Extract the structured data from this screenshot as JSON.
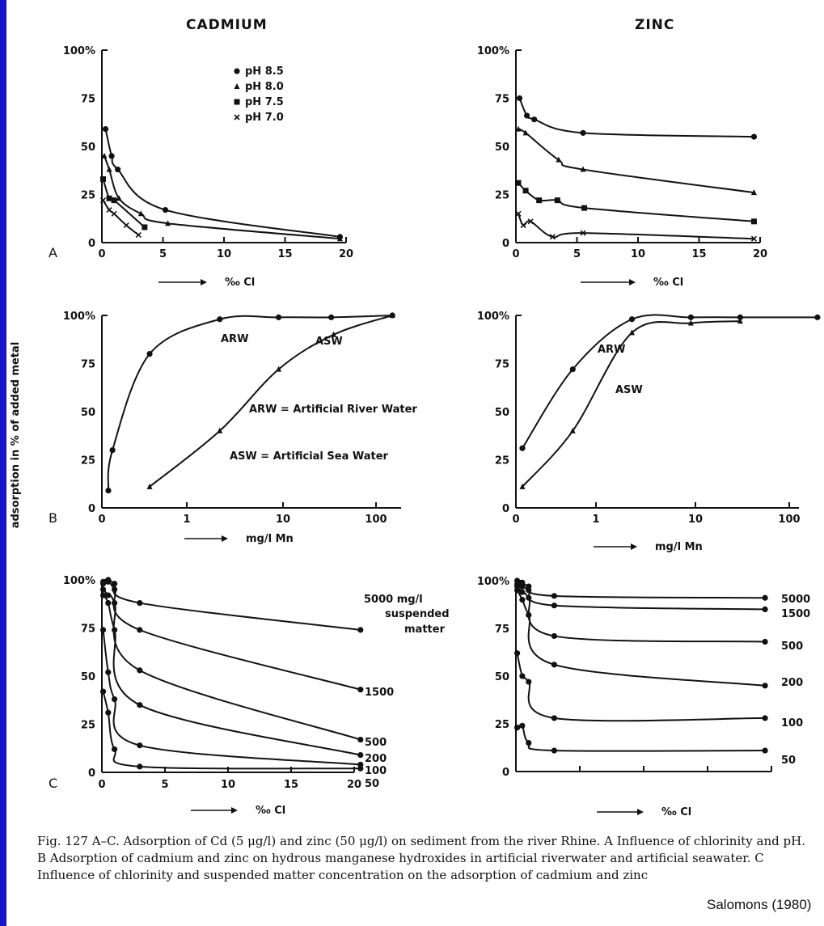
{
  "figure": {
    "col_titles": [
      "CADMIUM",
      "ZINC"
    ],
    "y_label": "adsorption in % of added metal",
    "caption": "Fig. 127 A–C. Adsorption of Cd (5 μg/l) and zinc (50 μg/l) on sediment from the river Rhine. A Influence of chlorinity and pH. B Adsorption of cadmium and zinc on hydrous manganese hydroxides in artificial riverwater and artificial seawater. C Influence of chlorinity and suspended matter concentration on the adsorption of cadmium and zinc",
    "credit": "Salomons (1980)"
  },
  "chart_data": [
    {
      "id": "A-cadmium",
      "panel_label": "A",
      "type": "line",
      "title": "CADMIUM",
      "xlabel": "‰ Cl",
      "ylabel": "adsorption in % of added metal",
      "xlim": [
        0,
        20
      ],
      "ylim": [
        0,
        100
      ],
      "x_ticks": [
        "0",
        "5",
        "10",
        "15",
        "20"
      ],
      "y_ticks": [
        "0",
        "25",
        "50",
        "75",
        "100%"
      ],
      "legend": {
        "placement": "top-center",
        "entries": [
          "pH 8.5",
          "pH 8.0",
          "pH 7.5",
          "pH 7.0"
        ]
      },
      "series": [
        {
          "name": "pH 8.5",
          "marker": "circle",
          "x": [
            0.3,
            0.8,
            1.3,
            5.2,
            19.5
          ],
          "y": [
            59,
            45,
            38,
            17,
            3
          ]
        },
        {
          "name": "pH 8.0",
          "marker": "triangle",
          "x": [
            0.2,
            0.6,
            1.4,
            3.2,
            5.4,
            19.5
          ],
          "y": [
            45,
            38,
            23,
            15,
            10,
            2
          ]
        },
        {
          "name": "pH 7.5",
          "marker": "square",
          "x": [
            0.1,
            0.6,
            1.0,
            3.5
          ],
          "y": [
            33,
            23,
            22,
            8
          ]
        },
        {
          "name": "pH 7.0",
          "marker": "x",
          "x": [
            0.1,
            0.6,
            1.0,
            2.0,
            3.0
          ],
          "y": [
            22,
            17,
            15,
            9,
            4
          ]
        }
      ]
    },
    {
      "id": "A-zinc",
      "panel_label": "",
      "type": "line",
      "title": "ZINC",
      "xlabel": "‰ Cl",
      "ylabel": "",
      "xlim": [
        0,
        20
      ],
      "ylim": [
        0,
        100
      ],
      "x_ticks": [
        "0",
        "5",
        "10",
        "15",
        "20"
      ],
      "y_ticks": [
        "0",
        "25",
        "50",
        "75",
        "100%"
      ],
      "series": [
        {
          "name": "pH 8.5",
          "marker": "circle",
          "x": [
            0.3,
            0.9,
            1.5,
            5.5,
            19.5
          ],
          "y": [
            75,
            66,
            64,
            57,
            55
          ]
        },
        {
          "name": "pH 8.0",
          "marker": "triangle",
          "x": [
            0.2,
            0.8,
            3.5,
            5.5,
            19.5
          ],
          "y": [
            59,
            57,
            43,
            38,
            26
          ]
        },
        {
          "name": "pH 7.5",
          "marker": "square",
          "x": [
            0.2,
            0.8,
            1.9,
            3.4,
            5.6,
            19.5
          ],
          "y": [
            31,
            27,
            22,
            22,
            18,
            11
          ]
        },
        {
          "name": "pH 7.0",
          "marker": "x",
          "x": [
            0.2,
            0.6,
            1.2,
            3.0,
            5.5,
            19.5
          ],
          "y": [
            15,
            9,
            11,
            3,
            5,
            2
          ]
        }
      ]
    },
    {
      "id": "B-cadmium",
      "panel_label": "B",
      "type": "line",
      "xlabel": "mg/l Mn",
      "ylabel": "adsorption in % of added metal",
      "x_scale": "log",
      "xlim": [
        0,
        100
      ],
      "ylim": [
        0,
        100
      ],
      "x_ticks": [
        "0",
        "1",
        "10",
        "100"
      ],
      "y_ticks": [
        "0",
        "25",
        "50",
        "75",
        "100%"
      ],
      "annotations": [
        "ARW",
        "ASW",
        "ARW = Artificial River Water",
        "ASW = Artificial Sea Water"
      ],
      "series": [
        {
          "name": "ARW",
          "marker": "circle",
          "x": [
            0.05,
            0.1,
            0.55,
            2.2,
            9,
            33,
            150
          ],
          "y": [
            9,
            30,
            80,
            98,
            99,
            99,
            100
          ]
        },
        {
          "name": "ASW",
          "marker": "triangle",
          "x": [
            0.55,
            2.2,
            9,
            35,
            150
          ],
          "y": [
            11,
            40,
            72,
            90,
            100
          ]
        }
      ]
    },
    {
      "id": "B-zinc",
      "panel_label": "",
      "type": "line",
      "xlabel": "mg/l Mn",
      "ylabel": "",
      "x_scale": "log",
      "xlim": [
        0,
        100
      ],
      "ylim": [
        0,
        100
      ],
      "x_ticks": [
        "0",
        "1",
        "10",
        "100"
      ],
      "y_ticks": [
        "0",
        "25",
        "50",
        "75",
        "100%"
      ],
      "annotations": [
        "ARW",
        "ASW"
      ],
      "series": [
        {
          "name": "ARW",
          "marker": "circle",
          "x": [
            0.05,
            0.7,
            2.3,
            9,
            30,
            200
          ],
          "y": [
            31,
            72,
            98,
            99,
            99,
            99
          ]
        },
        {
          "name": "ASW",
          "marker": "triangle",
          "x": [
            0.05,
            0.7,
            2.3,
            9,
            30
          ],
          "y": [
            11,
            40,
            91,
            96,
            97
          ]
        }
      ]
    },
    {
      "id": "C-cadmium",
      "panel_label": "C",
      "type": "line",
      "xlabel": "‰ Cl",
      "ylabel": "adsorption in % of added metal",
      "xlim": [
        0,
        20
      ],
      "ylim": [
        0,
        100
      ],
      "x_ticks": [
        "0",
        "5",
        "10",
        "15",
        "20"
      ],
      "y_ticks": [
        "0",
        "25",
        "50",
        "75",
        "100%"
      ],
      "annotations": [
        "5000 mg/l",
        "suspended",
        "matter"
      ],
      "series": [
        {
          "name": "5000",
          "marker": "circle",
          "x": [
            0.1,
            0.5,
            1.0,
            3.0,
            20.5
          ],
          "y": [
            99,
            100,
            98,
            88,
            74
          ]
        },
        {
          "name": "1500",
          "marker": "circle",
          "x": [
            0.1,
            0.5,
            1.0,
            3.0,
            20.5
          ],
          "y": [
            98,
            99,
            95,
            74,
            43
          ]
        },
        {
          "name": "500",
          "marker": "circle",
          "x": [
            0.1,
            0.5,
            1.0,
            3.0,
            20.5
          ],
          "y": [
            95,
            92,
            88,
            53,
            17
          ]
        },
        {
          "name": "200",
          "marker": "circle",
          "x": [
            0.1,
            0.5,
            1.0,
            3.0,
            20.5
          ],
          "y": [
            92,
            88,
            74,
            35,
            9
          ]
        },
        {
          "name": "100",
          "marker": "circle",
          "x": [
            0.1,
            0.5,
            1.0,
            3.0,
            20.5
          ],
          "y": [
            74,
            52,
            38,
            14,
            4
          ]
        },
        {
          "name": "50",
          "marker": "circle",
          "x": [
            0.1,
            0.5,
            1.0,
            3.0,
            20.5
          ],
          "y": [
            42,
            31,
            12,
            3,
            2
          ]
        }
      ]
    },
    {
      "id": "C-zinc",
      "panel_label": "",
      "type": "line",
      "xlabel": "‰ Cl",
      "ylabel": "",
      "xlim": [
        0,
        20
      ],
      "ylim": [
        0,
        100
      ],
      "x_ticks": [],
      "y_ticks": [
        "0",
        "25",
        "50",
        "75",
        "100%"
      ],
      "series": [
        {
          "name": "5000",
          "marker": "circle",
          "x": [
            0.1,
            0.5,
            1.0,
            3.0,
            19.5
          ],
          "y": [
            100,
            99,
            97,
            92,
            91
          ]
        },
        {
          "name": "1500",
          "marker": "circle",
          "x": [
            0.1,
            0.5,
            1.0,
            3.0,
            19.5
          ],
          "y": [
            98,
            97,
            95,
            87,
            85
          ]
        },
        {
          "name": "500",
          "marker": "circle",
          "x": [
            0.1,
            0.5,
            1.0,
            3.0,
            19.5
          ],
          "y": [
            97,
            94,
            91,
            71,
            68
          ]
        },
        {
          "name": "200",
          "marker": "circle",
          "x": [
            0.1,
            0.5,
            1.0,
            3.0,
            19.5
          ],
          "y": [
            95,
            90,
            82,
            56,
            45
          ]
        },
        {
          "name": "100",
          "marker": "circle",
          "x": [
            0.1,
            0.5,
            1.0,
            3.0,
            19.5
          ],
          "y": [
            62,
            50,
            47,
            28,
            28
          ]
        },
        {
          "name": "50",
          "marker": "circle",
          "x": [
            0.1,
            0.5,
            1.0,
            3.0,
            19.5
          ],
          "y": [
            23,
            24,
            15,
            11,
            11
          ]
        }
      ]
    }
  ]
}
